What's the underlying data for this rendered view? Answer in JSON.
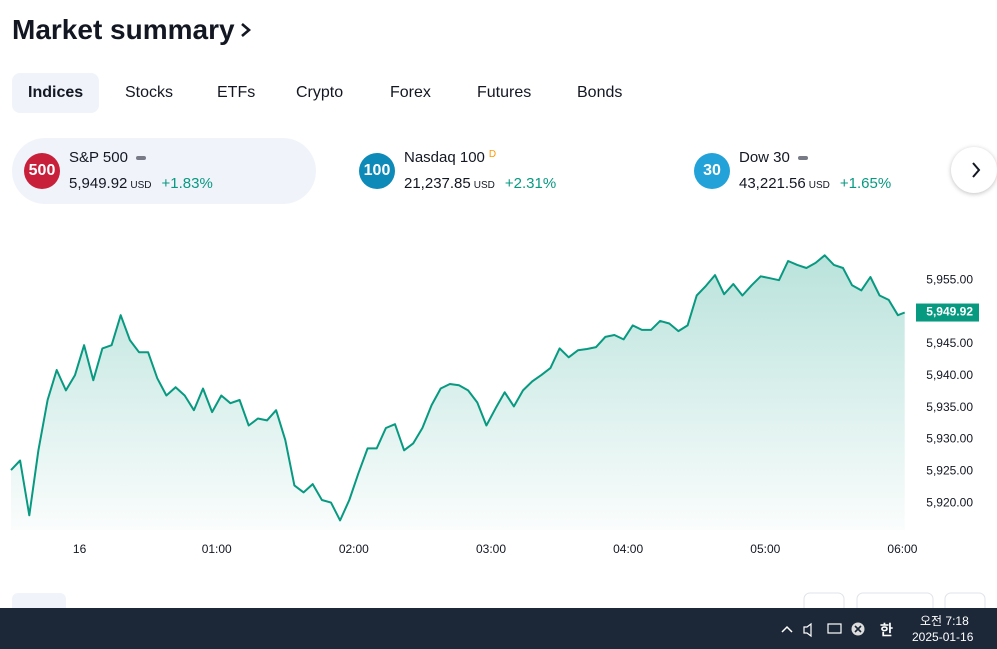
{
  "header": {
    "title": "Market summary"
  },
  "tabs": [
    "Indices",
    "Stocks",
    "ETFs",
    "Crypto",
    "Forex",
    "Futures",
    "Bonds"
  ],
  "tickers": [
    {
      "badge": "500",
      "name": "S&P 500",
      "price": "5,949.92",
      "currency": "USD",
      "change": "+1.83%",
      "badge_color": "#c8203a"
    },
    {
      "badge": "100",
      "name": "Nasdaq 100",
      "flag": "D",
      "price": "21,237.85",
      "currency": "USD",
      "change": "+2.31%",
      "badge_color": "#0d8ab8"
    },
    {
      "badge": "30",
      "name": "Dow 30",
      "price": "43,221.56",
      "currency": "USD",
      "change": "+1.65%",
      "badge_color": "#22a2d8"
    }
  ],
  "chart_data": {
    "type": "area",
    "color": "#089981",
    "x": [
      -30,
      -26,
      -22,
      -18,
      -14,
      -10,
      -6,
      -2,
      2,
      6,
      10,
      14,
      18,
      22,
      26,
      30,
      34,
      38,
      42,
      46,
      50,
      54,
      58,
      62,
      66,
      70,
      74,
      78,
      82,
      86,
      90,
      94,
      98,
      102,
      106,
      110,
      114,
      118,
      122,
      126,
      130,
      134,
      138,
      142,
      146,
      150,
      154,
      158,
      162,
      166,
      170,
      174,
      178,
      182,
      186,
      190,
      194,
      198,
      202,
      206,
      210,
      214,
      218,
      222,
      226,
      230,
      234,
      238,
      242,
      246,
      250,
      254,
      258,
      262,
      266,
      270,
      274,
      278,
      282,
      286,
      290,
      294,
      298,
      302,
      306,
      310,
      314,
      318,
      322,
      326,
      330,
      334,
      338,
      342,
      346,
      350,
      354,
      358,
      361
    ],
    "values": [
      5925.2,
      5926.7,
      5918.1,
      5928.3,
      5936.2,
      5940.9,
      5937.7,
      5940.1,
      5944.8,
      5939.3,
      5944.3,
      5944.8,
      5949.5,
      5945.6,
      5943.7,
      5943.7,
      5939.6,
      5936.9,
      5938.2,
      5936.9,
      5934.6,
      5938.0,
      5934.3,
      5936.9,
      5935.7,
      5936.2,
      5932.2,
      5933.3,
      5933.0,
      5934.6,
      5929.9,
      5922.8,
      5921.7,
      5923.0,
      5920.5,
      5920.1,
      5917.3,
      5920.5,
      5924.7,
      5928.6,
      5928.6,
      5931.8,
      5932.4,
      5928.3,
      5929.4,
      5931.8,
      5935.4,
      5938.0,
      5938.7,
      5938.5,
      5937.7,
      5935.8,
      5932.2,
      5934.9,
      5937.4,
      5935.2,
      5937.7,
      5939.1,
      5940.1,
      5941.2,
      5944.3,
      5942.9,
      5944.0,
      5944.2,
      5944.5,
      5946.1,
      5946.4,
      5945.7,
      5947.9,
      5947.2,
      5947.2,
      5948.6,
      5948.2,
      5947.0,
      5947.9,
      5952.6,
      5954.1,
      5955.8,
      5952.8,
      5954.4,
      5952.6,
      5954.2,
      5955.6,
      5955.3,
      5955.0,
      5958.0,
      5957.4,
      5956.9,
      5957.7,
      5958.9,
      5957.4,
      5956.9,
      5954.2,
      5953.4,
      5955.5,
      5952.6,
      5951.9,
      5949.5,
      5949.92
    ],
    "last_value_label": "5,949.92",
    "xlim": [
      -30,
      362
    ],
    "ylim": [
      5915.8,
      5961.3
    ],
    "xticks": [
      {
        "value": 0,
        "label": "16"
      },
      {
        "value": 60,
        "label": "01:00"
      },
      {
        "value": 120,
        "label": "02:00"
      },
      {
        "value": 180,
        "label": "03:00"
      },
      {
        "value": 240,
        "label": "04:00"
      },
      {
        "value": 300,
        "label": "05:00"
      },
      {
        "value": 360,
        "label": "06:00"
      }
    ],
    "yticks": [
      {
        "value": 5920,
        "label": "5,920.00"
      },
      {
        "value": 5925,
        "label": "5,925.00"
      },
      {
        "value": 5930,
        "label": "5,930.00"
      },
      {
        "value": 5935,
        "label": "5,935.00"
      },
      {
        "value": 5940,
        "label": "5,940.00"
      },
      {
        "value": 5945,
        "label": "5,945.00"
      },
      {
        "value": 5955,
        "label": "5,955.00"
      }
    ]
  },
  "taskbar": {
    "time": "오전 7:18",
    "date": "2025-01-16",
    "ime": "한"
  }
}
